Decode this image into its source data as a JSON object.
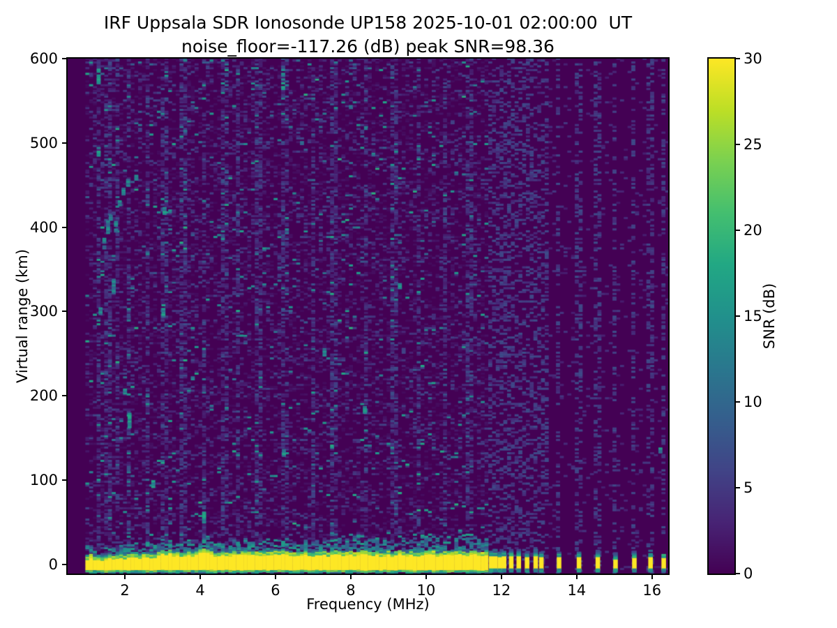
{
  "chart_data": {
    "type": "heatmap",
    "title": "IRF Uppsala SDR Ionosonde UP158 2025-10-01 02:00:00  UT",
    "subtitle": "noise_floor=-117.26 (dB) peak SNR=98.36",
    "xlabel": "Frequency (MHz)",
    "ylabel": "Virtual range (km)",
    "xlim": [
      0.48,
      16.43
    ],
    "ylim": [
      -10.8,
      600
    ],
    "xticks": [
      2,
      4,
      6,
      8,
      10,
      12,
      14,
      16
    ],
    "yticks": [
      0,
      100,
      200,
      300,
      400,
      500,
      600
    ],
    "grid_on": false,
    "colorbar": {
      "label": "SNR (dB)",
      "ticks": [
        0,
        5,
        10,
        15,
        20,
        25,
        30
      ],
      "lim": [
        0,
        30
      ],
      "colormap": "viridis",
      "stops": [
        [
          0.0,
          "#440154"
        ],
        [
          0.1,
          "#482475"
        ],
        [
          0.2,
          "#414487"
        ],
        [
          0.3,
          "#355f8d"
        ],
        [
          0.4,
          "#2a788e"
        ],
        [
          0.5,
          "#21918c"
        ],
        [
          0.6,
          "#22a884"
        ],
        [
          0.7,
          "#44bf70"
        ],
        [
          0.8,
          "#7ad151"
        ],
        [
          0.9,
          "#bddf26"
        ],
        [
          1.0,
          "#fde725"
        ]
      ]
    },
    "grid": {
      "f_start": 0.95,
      "f_end": 16.43,
      "df": 0.1,
      "km_min": -10.8,
      "km_max": 600,
      "dkm": 2.25
    },
    "seed": 20251001,
    "noise": {
      "base_density_left": 0.3,
      "base_density_right": 0.05,
      "stripe_density_mult": 1.9,
      "right_stripe_density": 0.34,
      "teal_prob": 0.055,
      "bright_prob": 0.012
    },
    "ground_band": {
      "f_start": 0.95,
      "f_end": 11.62,
      "core_bottom_km": -7,
      "core_top_base_km": 6.5,
      "core_top_gain_km": 4.5,
      "bumps": [
        [
          3.05,
          4,
          0.18
        ],
        [
          4.05,
          4,
          0.15
        ],
        [
          5.0,
          2.5,
          0.12
        ],
        [
          2.0,
          1.5,
          0.1
        ]
      ],
      "fuzz_base": 5,
      "fuzz_hi": 13,
      "fuzz_hi_fmin": 7.2,
      "below_teal_prob": 0.6
    },
    "rf_bars": [
      [
        11.72,
        10
      ],
      [
        11.83,
        10
      ],
      [
        11.95,
        9
      ],
      [
        12.06,
        10
      ],
      [
        12.25,
        10
      ],
      [
        12.45,
        10
      ],
      [
        12.67,
        9
      ],
      [
        12.9,
        10
      ],
      [
        13.05,
        9
      ],
      [
        13.52,
        9
      ],
      [
        14.05,
        9
      ],
      [
        14.55,
        9
      ],
      [
        15.02,
        6
      ],
      [
        15.52,
        8
      ],
      [
        15.95,
        9
      ],
      [
        16.3,
        8
      ]
    ],
    "stripes_left": [
      1.3,
      1.55,
      1.8,
      2.1,
      2.62,
      3.0,
      3.12,
      3.55,
      4.1,
      4.65,
      5.0,
      5.55,
      6.2,
      6.32,
      7.0,
      7.55,
      8.4,
      9.15,
      9.8,
      10.5,
      11.15
    ],
    "stripes_right": [
      11.72,
      11.83,
      11.95,
      12.06,
      12.15,
      12.25,
      12.35,
      12.45,
      12.55,
      12.67,
      12.78,
      12.9,
      13.05,
      13.2,
      13.52,
      14.05,
      14.55,
      15.02,
      15.52,
      15.95,
      16.3
    ],
    "echo_streaks": [
      [
        1.45,
        380,
        12
      ],
      [
        1.55,
        398,
        16
      ],
      [
        1.62,
        412,
        8
      ],
      [
        1.7,
        330,
        18
      ],
      [
        1.76,
        400,
        12
      ],
      [
        1.86,
        428,
        10
      ],
      [
        1.96,
        442,
        8
      ],
      [
        2.08,
        452,
        7
      ],
      [
        2.3,
        458,
        5
      ],
      [
        1.35,
        300,
        8
      ],
      [
        2.0,
        205,
        6
      ]
    ],
    "hot_spots": [
      [
        1.3,
        578,
        16
      ],
      [
        1.3,
        490,
        12
      ],
      [
        2.12,
        170,
        16
      ],
      [
        3.05,
        420,
        10
      ],
      [
        3.02,
        300,
        14
      ],
      [
        2.75,
        95,
        8
      ],
      [
        4.1,
        55,
        12
      ],
      [
        6.2,
        575,
        24
      ],
      [
        6.22,
        132,
        8
      ],
      [
        8.37,
        183,
        8
      ],
      [
        10.42,
        136,
        6
      ],
      [
        16.22,
        135,
        6
      ],
      [
        5.02,
        18,
        10
      ],
      [
        7.3,
        250,
        6
      ],
      [
        9.3,
        330,
        6
      ]
    ]
  }
}
